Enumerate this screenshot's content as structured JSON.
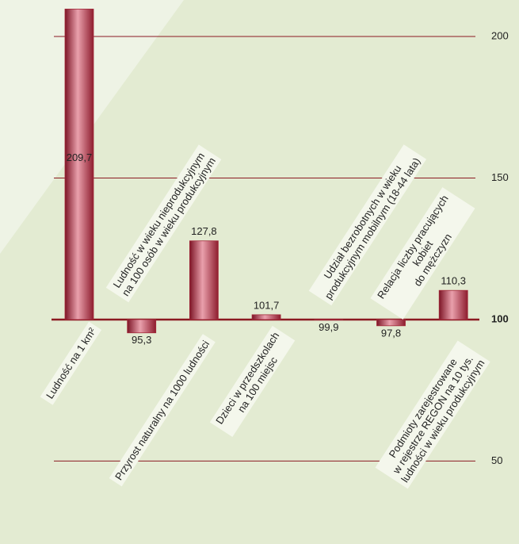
{
  "chart_data": {
    "type": "bar",
    "categories": [
      "Ludność na 1 km²",
      "Ludność w wieku nieprodukcyjnym\nna 100 osób w wieku produkcyjnym",
      "Przyrost naturalny na 1000 ludności",
      "Dzieci w przedszkolach\nna 100 miejsc",
      "Udział bezrobotnych w wieku\nprodukcyjnym mobilnym (18-44 lata)",
      "Relacja liczby pracujących kobiet\ndo mężczyzn",
      "Podmioty zarejestrowane\nw rejestrze REGON na 10 tys.\nludności w wieku produkcyjnym"
    ],
    "values": [
      209.7,
      95.3,
      127.8,
      101.7,
      99.9,
      97.8,
      110.3
    ],
    "value_labels": [
      "209,7",
      "95,3",
      "127,8",
      "101,7",
      "99,9",
      "97,8",
      "110,3"
    ],
    "baseline": 100,
    "color": "#a3293a",
    "ylim": [
      20.7,
      212.9
    ],
    "yticks": [
      50,
      100,
      150,
      200
    ],
    "grid": true
  }
}
